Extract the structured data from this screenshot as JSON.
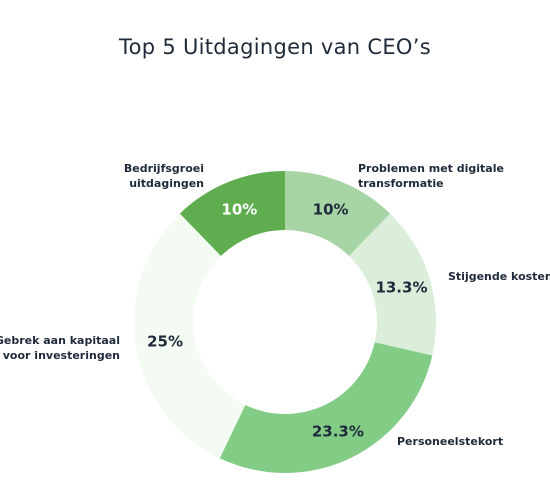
{
  "chart_data": {
    "type": "pie",
    "variant": "donut",
    "title": "Top 5 Uitdagingen van CEO’s",
    "categories": [
      "Problemen met digitale transformatie",
      "Stijgende kosten",
      "Personeelstekort",
      "Gebrek aan kapitaal voor investeringen",
      "Bedrijfsgroei uitdagingen"
    ],
    "values": [
      10,
      13.3,
      23.3,
      25,
      10
    ],
    "value_labels": [
      "10%",
      "13.3%",
      "23.3%",
      "25%",
      "10%"
    ],
    "category_label_lines": [
      [
        "Problemen met digitale",
        "transformatie"
      ],
      [
        "Stijgende kosten"
      ],
      [
        "Personeelstekort"
      ],
      [
        "Gebrek aan kapitaal",
        "voor investeringen"
      ],
      [
        "Bedrijfsgroei",
        "uitdagingen"
      ]
    ],
    "colors": [
      "#a7d4a5",
      "#daeeda",
      "#82cc86",
      "#f3fbf2",
      "#5fad4e"
    ],
    "value_label_colors": [
      "#1f2a3a",
      "#1f2a3a",
      "#1f2a3a",
      "#1f2a3a",
      "#ffffff"
    ],
    "legend": "none"
  }
}
